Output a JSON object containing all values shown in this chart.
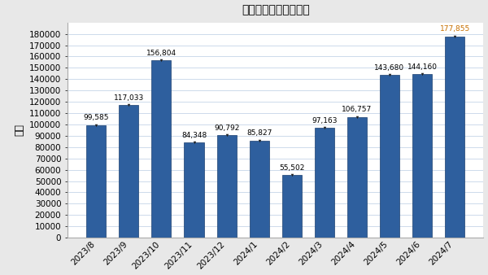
{
  "title": "フィッシング報告件数",
  "ylabel": "件数",
  "categories": [
    "2023/8",
    "2023/9",
    "2023/10",
    "2023/11",
    "2023/12",
    "2024/1",
    "2024/2",
    "2024/3",
    "2024/4",
    "2024/5",
    "2024/6",
    "2024/7"
  ],
  "values": [
    99585,
    117033,
    156804,
    84348,
    90792,
    85827,
    55502,
    97163,
    106757,
    143680,
    144160,
    177855
  ],
  "bar_color": "#2E5F9E",
  "bar_edge_color": "#1a3f6f",
  "label_colors": [
    "#000000",
    "#000000",
    "#000000",
    "#000000",
    "#000000",
    "#000000",
    "#000000",
    "#000000",
    "#000000",
    "#000000",
    "#000000",
    "#c87000"
  ],
  "ylim": [
    0,
    190000
  ],
  "yticks": [
    0,
    10000,
    20000,
    30000,
    40000,
    50000,
    60000,
    70000,
    80000,
    90000,
    100000,
    110000,
    120000,
    130000,
    140000,
    150000,
    160000,
    170000,
    180000
  ],
  "background_color": "#e8e8e8",
  "plot_bg_color": "#ffffff",
  "title_fontsize": 13,
  "axis_label_fontsize": 9,
  "tick_fontsize": 7.5,
  "value_fontsize": 6.5
}
